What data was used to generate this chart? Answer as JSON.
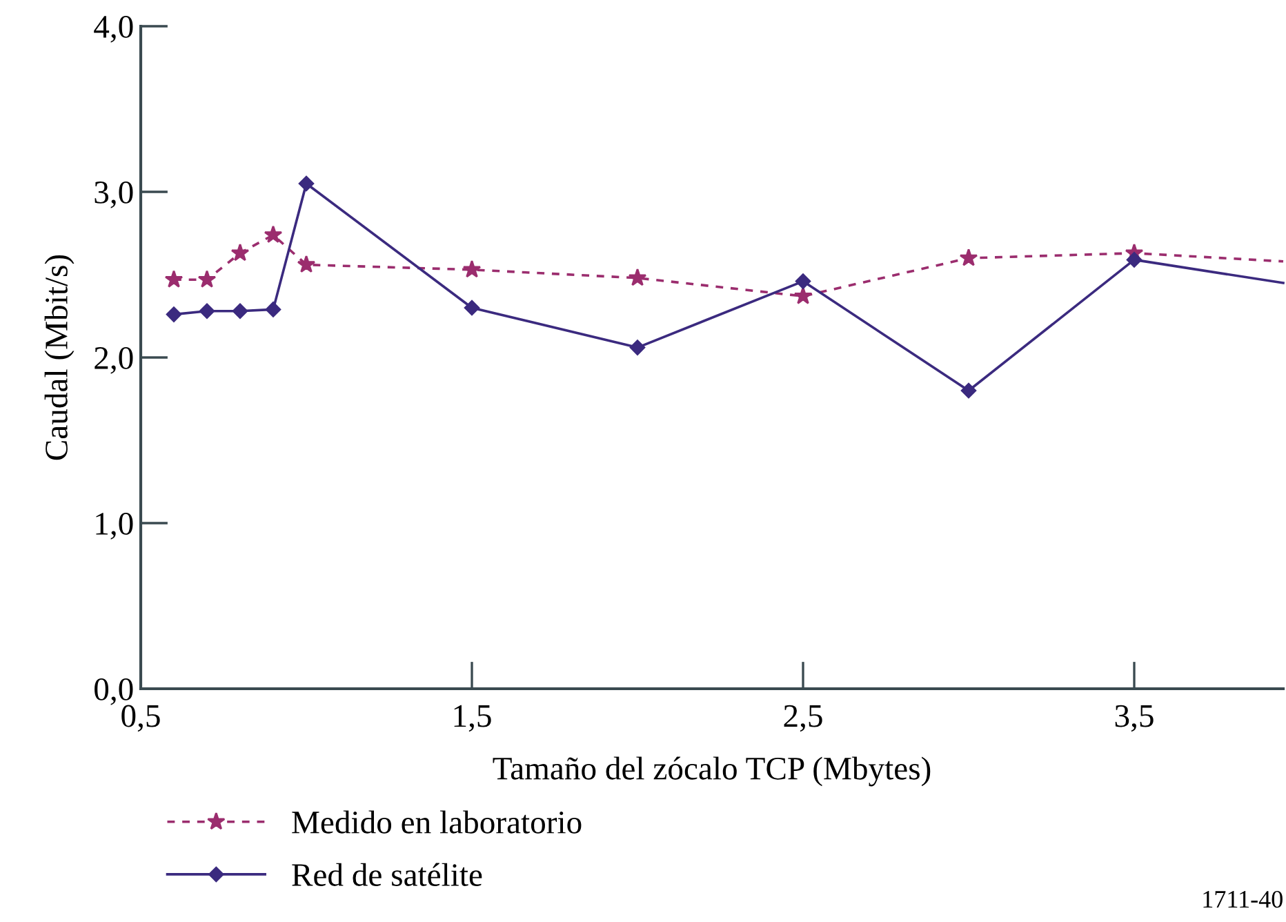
{
  "chart_data": {
    "type": "line",
    "xlabel": "Tamaño del zócalo TCP (Mbytes)",
    "ylabel": "Caudal (Mbit/s)",
    "x": [
      0.6,
      0.7,
      0.8,
      0.9,
      1.0,
      1.5,
      2.0,
      2.5,
      3.0,
      3.5,
      3.95
    ],
    "series": [
      {
        "name": "Medido en laboratorio",
        "color": "#9b2d6e",
        "values": [
          2.47,
          2.47,
          2.63,
          2.74,
          2.56,
          2.53,
          2.48,
          2.37,
          2.6,
          2.63,
          2.58
        ],
        "marker": "star",
        "line_style": "dashed"
      },
      {
        "name": "Red de satélite",
        "color": "#3b2a7f",
        "values": [
          2.26,
          2.28,
          2.28,
          2.29,
          3.05,
          2.3,
          2.06,
          2.46,
          1.8,
          2.59,
          2.45
        ],
        "marker": "diamond",
        "line_style": "solid"
      }
    ],
    "xlim": [
      0.5,
      3.95
    ],
    "xticks": [
      {
        "value": 0.5,
        "label": "0,5"
      },
      {
        "value": 1.5,
        "label": "1,5"
      },
      {
        "value": 2.5,
        "label": "2,5"
      },
      {
        "value": 3.5,
        "label": "3,5"
      }
    ],
    "ylim": [
      0,
      4
    ],
    "yticks": [
      {
        "value": 0,
        "label": "0,0"
      },
      {
        "value": 1,
        "label": "1,0"
      },
      {
        "value": 2,
        "label": "2,0"
      },
      {
        "value": 3,
        "label": "3,0"
      },
      {
        "value": 4,
        "label": "4,0"
      }
    ],
    "grid": false,
    "legend": "bottom left",
    "annotations": [
      "1711-40"
    ]
  }
}
